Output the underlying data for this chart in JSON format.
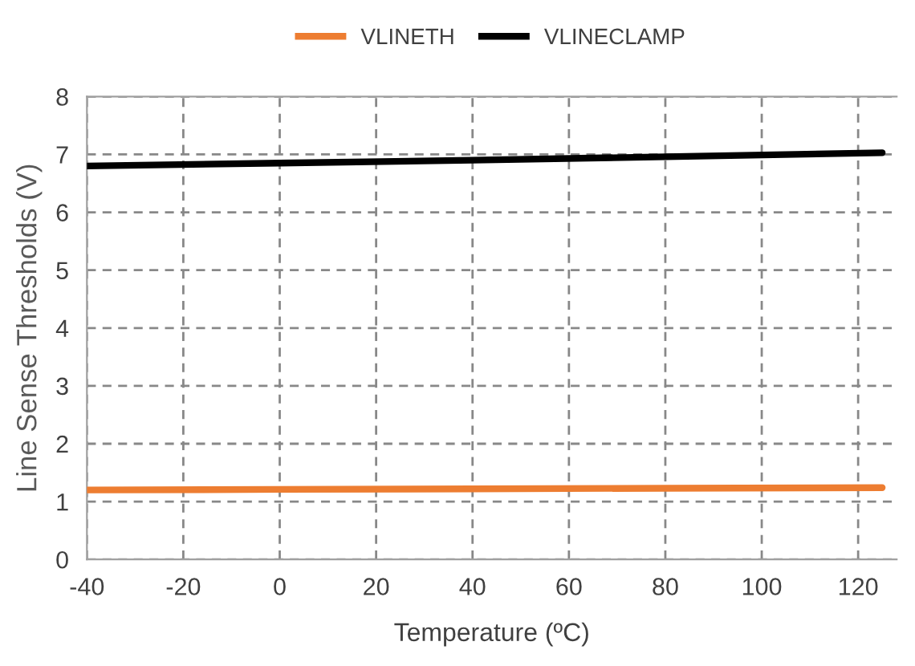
{
  "chart_data": {
    "type": "line",
    "xlabel": "Temperature (ºC)",
    "ylabel": "Line Sense Thresholds (V)",
    "x": [
      -40,
      0,
      40,
      80,
      125
    ],
    "series": [
      {
        "name": "VLINETH",
        "color": "#ed7d31",
        "values": [
          1.2,
          1.21,
          1.22,
          1.23,
          1.24
        ]
      },
      {
        "name": "VLINECLAMP",
        "color": "#000000",
        "values": [
          6.8,
          6.85,
          6.9,
          6.96,
          7.03
        ]
      }
    ],
    "xlim": [
      -40,
      128
    ],
    "xticks": [
      -40,
      -20,
      0,
      20,
      40,
      60,
      80,
      100,
      120
    ],
    "ylim": [
      0,
      8
    ],
    "yticks": [
      0,
      1,
      2,
      3,
      4,
      5,
      6,
      7,
      8
    ],
    "grid": true,
    "legend": "top",
    "marker": "none",
    "line_style": "solid"
  }
}
